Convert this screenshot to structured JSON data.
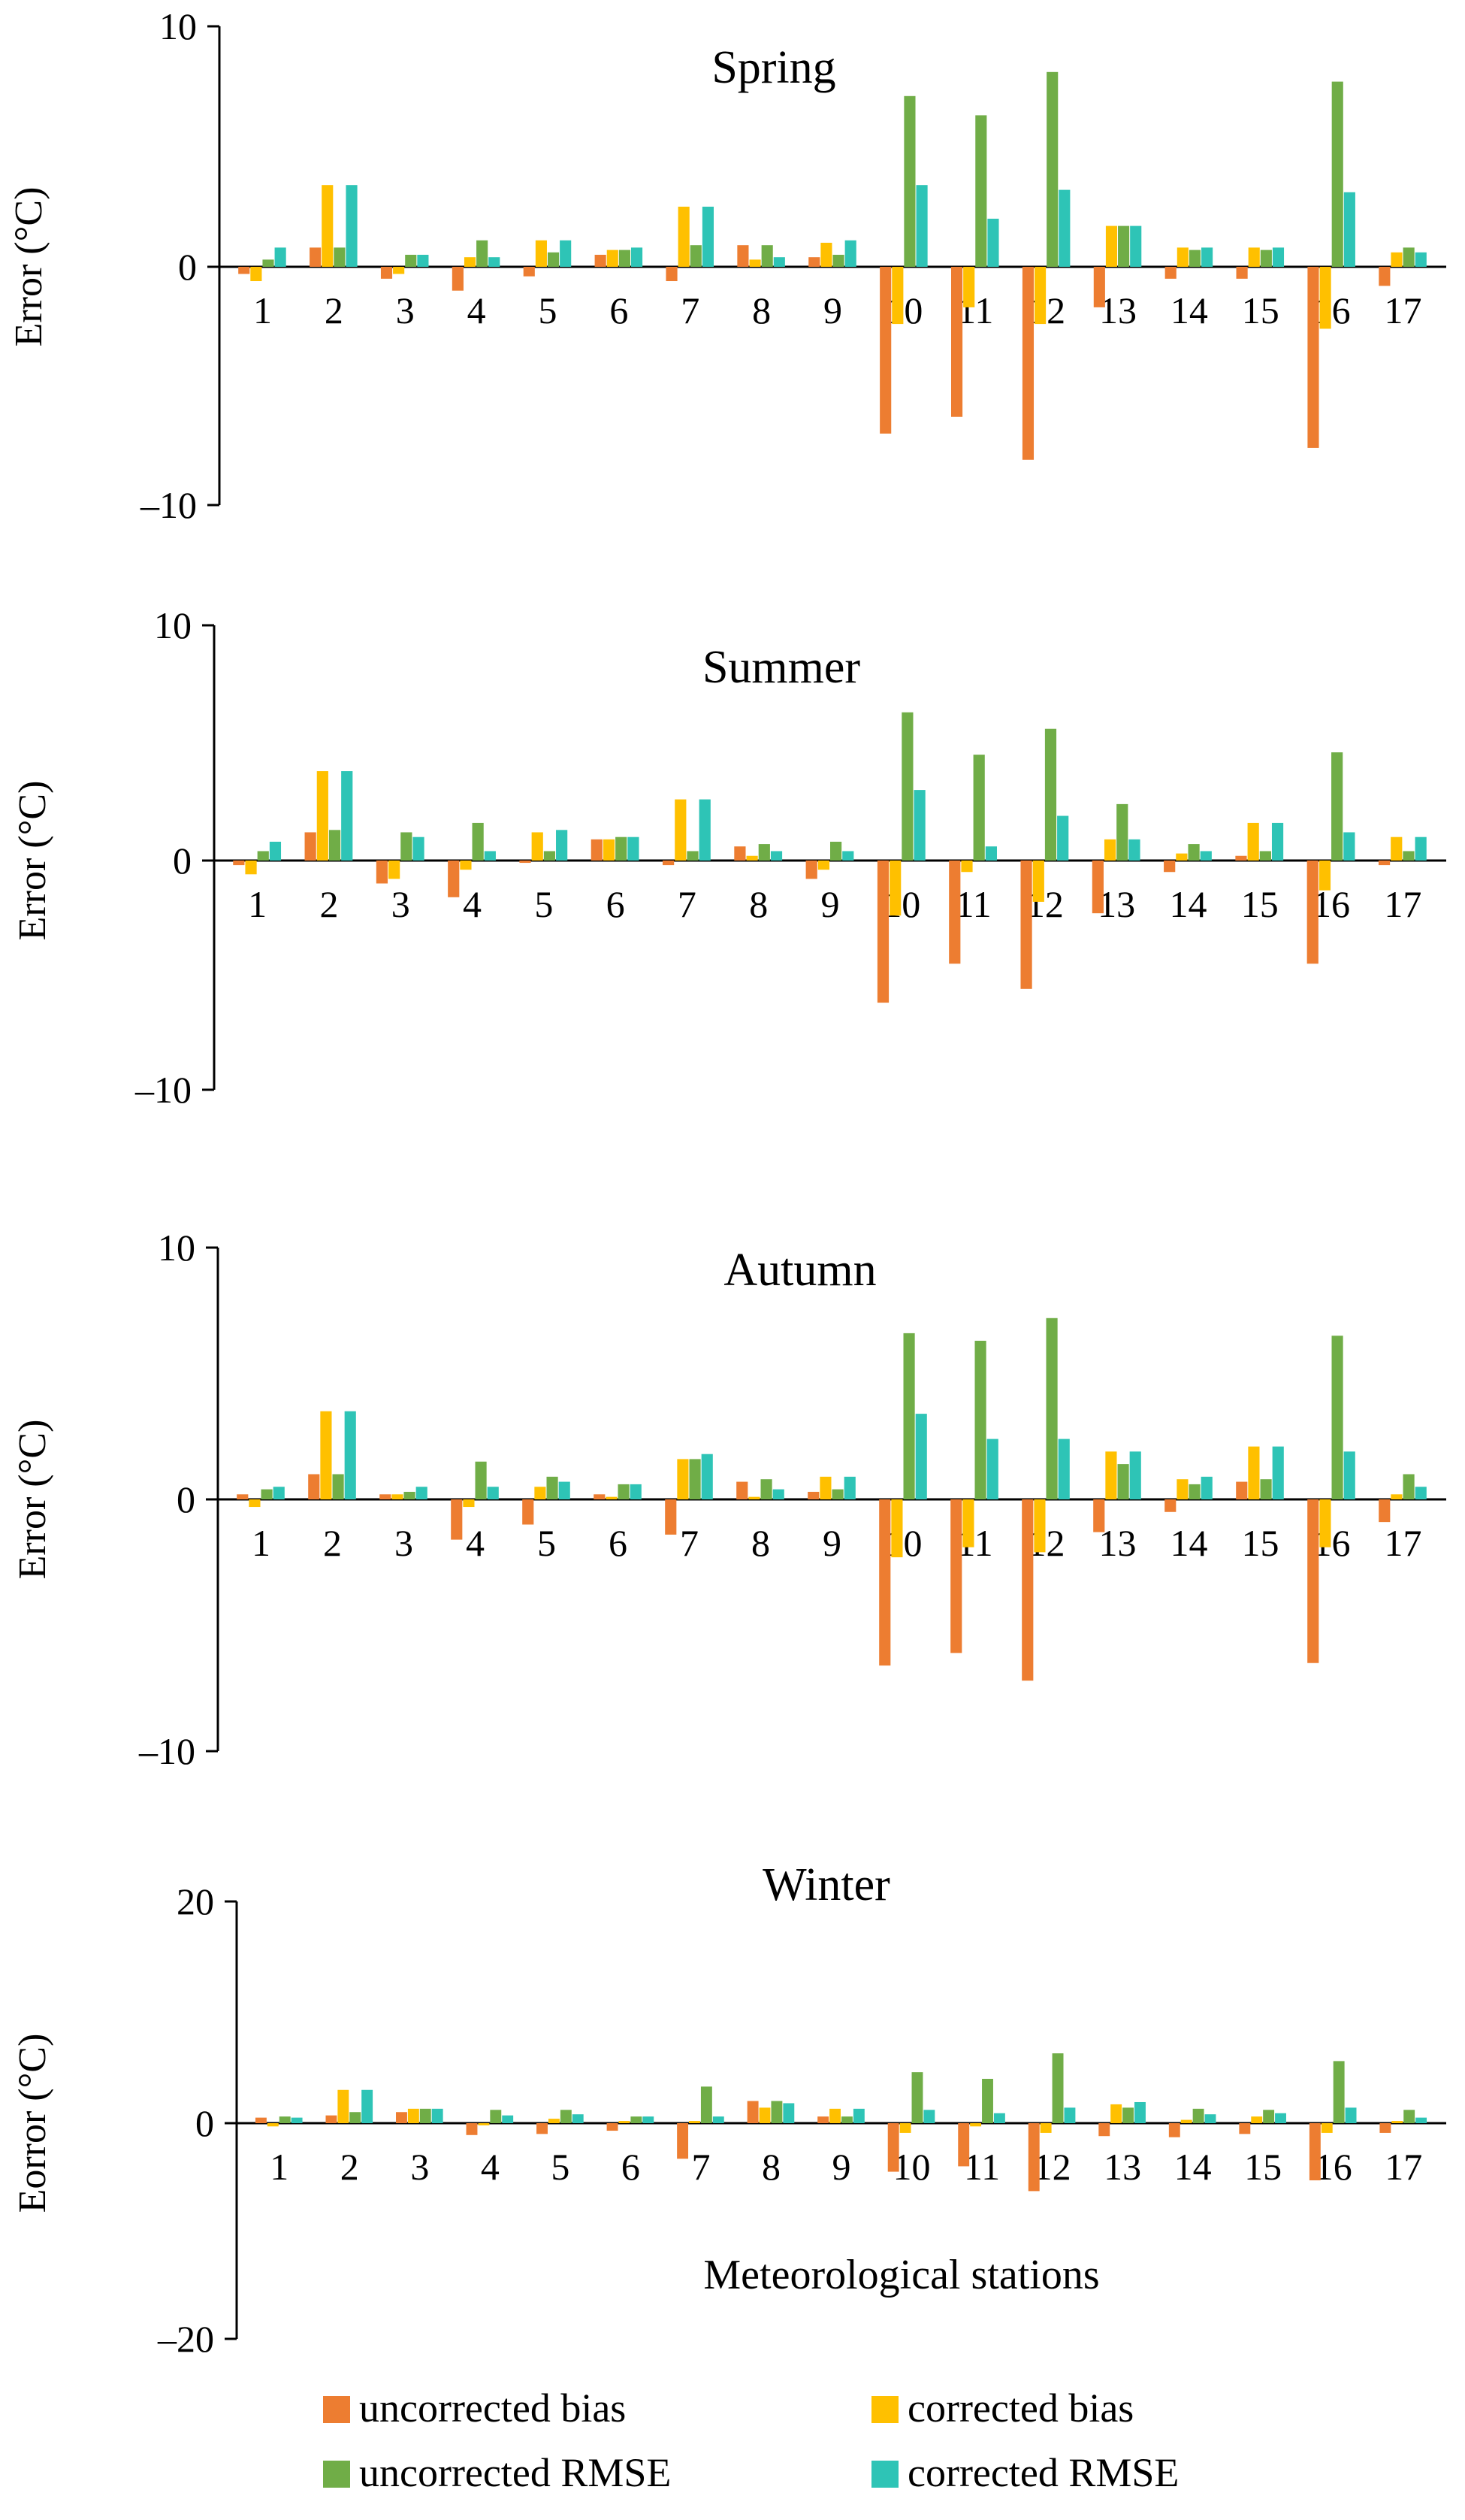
{
  "series_colors": {
    "uncorrected_bias": "#ED7D31",
    "corrected_bias": "#FFC000",
    "uncorrected_rmse": "#70AD47",
    "corrected_rmse": "#2EC4B6"
  },
  "legend": {
    "items": [
      {
        "key": "uncorrected_bias",
        "label": "uncorrected bias"
      },
      {
        "key": "corrected_bias",
        "label": "corrected bias"
      },
      {
        "key": "uncorrected_rmse",
        "label": "uncorrected RMSE"
      },
      {
        "key": "corrected_rmse",
        "label": "corrected RMSE"
      }
    ]
  },
  "chart_data": [
    {
      "type": "bar",
      "title": "Spring",
      "xlabel": "",
      "ylabel": "Error (°C)",
      "ylim": [
        -10,
        10
      ],
      "yticks": [
        "10",
        "0",
        "–10"
      ],
      "categories": [
        "1",
        "2",
        "3",
        "4",
        "5",
        "6",
        "7",
        "8",
        "9",
        "10",
        "11",
        "12",
        "13",
        "14",
        "15",
        "16",
        "17"
      ],
      "series": [
        {
          "name": "uncorrected bias",
          "values": [
            -0.3,
            0.8,
            -0.5,
            -1.0,
            -0.4,
            0.5,
            -0.6,
            0.9,
            0.4,
            -7.0,
            -6.3,
            -8.1,
            -1.7,
            -0.5,
            -0.5,
            -7.6,
            -0.8
          ]
        },
        {
          "name": "corrected bias",
          "values": [
            -0.6,
            3.4,
            -0.3,
            0.4,
            1.1,
            0.7,
            2.5,
            0.3,
            1.0,
            -2.4,
            -1.7,
            -2.4,
            1.7,
            0.8,
            0.8,
            -2.6,
            0.6
          ]
        },
        {
          "name": "uncorrected RMSE",
          "values": [
            0.3,
            0.8,
            0.5,
            1.1,
            0.6,
            0.7,
            0.9,
            0.9,
            0.5,
            7.1,
            6.3,
            8.1,
            1.7,
            0.7,
            0.7,
            7.7,
            0.8
          ]
        },
        {
          "name": "corrected RMSE",
          "values": [
            0.8,
            3.4,
            0.5,
            0.4,
            1.1,
            0.8,
            2.5,
            0.4,
            1.1,
            3.4,
            2.0,
            3.2,
            1.7,
            0.8,
            0.8,
            3.1,
            0.6
          ]
        }
      ]
    },
    {
      "type": "bar",
      "title": "Summer",
      "xlabel": "",
      "ylabel": "Error (°C)",
      "ylim": [
        -10,
        10
      ],
      "yticks": [
        "10",
        "0",
        "–10"
      ],
      "categories": [
        "1",
        "2",
        "3",
        "4",
        "5",
        "6",
        "7",
        "8",
        "9",
        "10",
        "11",
        "12",
        "13",
        "14",
        "15",
        "16",
        "17"
      ],
      "series": [
        {
          "name": "uncorrected bias",
          "values": [
            -0.2,
            1.2,
            -1.0,
            -1.6,
            -0.1,
            0.9,
            -0.2,
            0.6,
            -0.8,
            -6.2,
            -4.5,
            -5.6,
            -2.3,
            -0.5,
            0.2,
            -4.5,
            -0.2
          ]
        },
        {
          "name": "corrected bias",
          "values": [
            -0.6,
            3.8,
            -0.8,
            -0.4,
            1.2,
            0.9,
            2.6,
            0.2,
            -0.4,
            -2.4,
            -0.5,
            -1.8,
            0.9,
            0.3,
            1.6,
            -1.3,
            1.0
          ]
        },
        {
          "name": "uncorrected RMSE",
          "values": [
            0.4,
            1.3,
            1.2,
            1.6,
            0.4,
            1.0,
            0.4,
            0.7,
            0.8,
            6.3,
            4.5,
            5.6,
            2.4,
            0.7,
            0.4,
            4.6,
            0.4
          ]
        },
        {
          "name": "corrected RMSE",
          "values": [
            0.8,
            3.8,
            1.0,
            0.4,
            1.3,
            1.0,
            2.6,
            0.4,
            0.4,
            3.0,
            0.6,
            1.9,
            0.9,
            0.4,
            1.6,
            1.2,
            1.0
          ]
        }
      ]
    },
    {
      "type": "bar",
      "title": "Autumn",
      "xlabel": "",
      "ylabel": "Error (°C)",
      "ylim": [
        -10,
        10
      ],
      "yticks": [
        "10",
        "0",
        "–10"
      ],
      "categories": [
        "1",
        "2",
        "3",
        "4",
        "5",
        "6",
        "7",
        "8",
        "9",
        "10",
        "11",
        "12",
        "13",
        "14",
        "15",
        "16",
        "17"
      ],
      "series": [
        {
          "name": "uncorrected bias",
          "values": [
            0.2,
            1.0,
            0.2,
            -1.6,
            -1.0,
            0.2,
            -1.4,
            0.7,
            0.3,
            -6.6,
            -6.1,
            -7.2,
            -1.3,
            -0.5,
            0.7,
            -6.5,
            -0.9
          ]
        },
        {
          "name": "corrected bias",
          "values": [
            -0.3,
            3.5,
            0.2,
            -0.3,
            0.5,
            0.1,
            1.6,
            0.1,
            0.9,
            -2.3,
            -1.9,
            -2.1,
            1.9,
            0.8,
            2.1,
            -1.9,
            0.2
          ]
        },
        {
          "name": "uncorrected RMSE",
          "values": [
            0.4,
            1.0,
            0.3,
            1.5,
            0.9,
            0.6,
            1.6,
            0.8,
            0.4,
            6.6,
            6.3,
            7.2,
            1.4,
            0.6,
            0.8,
            6.5,
            1.0
          ]
        },
        {
          "name": "corrected RMSE",
          "values": [
            0.5,
            3.5,
            0.5,
            0.5,
            0.7,
            0.6,
            1.8,
            0.4,
            0.9,
            3.4,
            2.4,
            2.4,
            1.9,
            0.9,
            2.1,
            1.9,
            0.5
          ]
        }
      ]
    },
    {
      "type": "bar",
      "title": "Winter",
      "xlabel": "Meteorological stations",
      "ylabel": "Eorror (°C)",
      "ylim": [
        -20,
        20
      ],
      "yticks": [
        "20",
        "0",
        "–20"
      ],
      "categories": [
        "1",
        "2",
        "3",
        "4",
        "5",
        "6",
        "7",
        "8",
        "9",
        "10",
        "11",
        "12",
        "13",
        "14",
        "15",
        "16",
        "17"
      ],
      "series": [
        {
          "name": "uncorrected bias",
          "values": [
            0.5,
            0.7,
            1.0,
            -1.1,
            -1.0,
            -0.7,
            -3.3,
            2.0,
            0.6,
            -4.5,
            -4.0,
            -6.3,
            -1.2,
            -1.3,
            -1.0,
            -5.3,
            -0.9
          ]
        },
        {
          "name": "corrected bias",
          "values": [
            -0.3,
            3.0,
            1.3,
            -0.2,
            0.4,
            0.2,
            0.2,
            1.4,
            1.3,
            -0.9,
            -0.3,
            -0.9,
            1.7,
            0.3,
            0.6,
            -0.9,
            0.2
          ]
        },
        {
          "name": "uncorrected RMSE",
          "values": [
            0.6,
            1.0,
            1.3,
            1.2,
            1.2,
            0.6,
            3.3,
            2.0,
            0.6,
            4.6,
            4.0,
            6.3,
            1.4,
            1.3,
            1.2,
            5.6,
            1.2
          ]
        },
        {
          "name": "corrected RMSE",
          "values": [
            0.5,
            3.0,
            1.3,
            0.7,
            0.8,
            0.6,
            0.6,
            1.8,
            1.3,
            1.2,
            0.9,
            1.4,
            1.9,
            0.8,
            0.9,
            1.4,
            0.5
          ]
        }
      ]
    }
  ]
}
